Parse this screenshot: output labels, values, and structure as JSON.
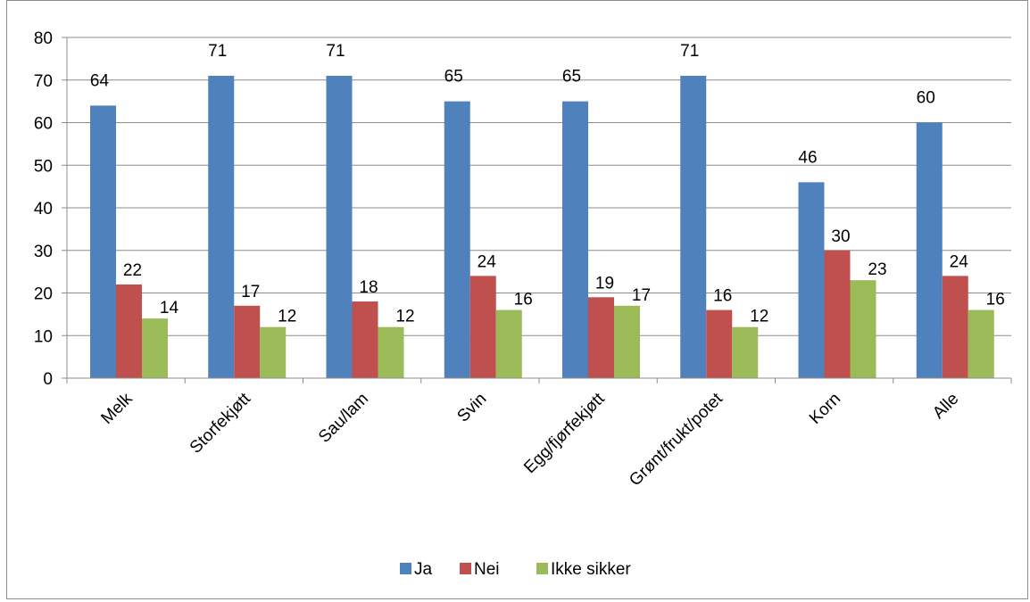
{
  "chart_data": {
    "type": "bar",
    "title": "",
    "xlabel": "",
    "ylabel": "",
    "categories": [
      "Melk",
      "Storfekjøtt",
      "Sau/lam",
      "Svin",
      "Egg/fjørfekjøtt",
      "Grønt/frukt/potet",
      "Korn",
      "Alle"
    ],
    "series": [
      {
        "name": "Ja",
        "color": "#4f81bd",
        "values": [
          64,
          71,
          71,
          65,
          65,
          71,
          46,
          60
        ]
      },
      {
        "name": "Nei",
        "color": "#c0504d",
        "values": [
          22,
          17,
          18,
          24,
          19,
          16,
          30,
          24
        ]
      },
      {
        "name": "Ikke sikker",
        "color": "#9bbb59",
        "values": [
          14,
          12,
          12,
          16,
          17,
          12,
          23,
          16
        ]
      }
    ],
    "ylim": [
      0,
      80
    ],
    "yticks": [
      0,
      10,
      20,
      30,
      40,
      50,
      60,
      70,
      80
    ],
    "grid": true,
    "legend_position": "bottom",
    "data_labels": true
  }
}
